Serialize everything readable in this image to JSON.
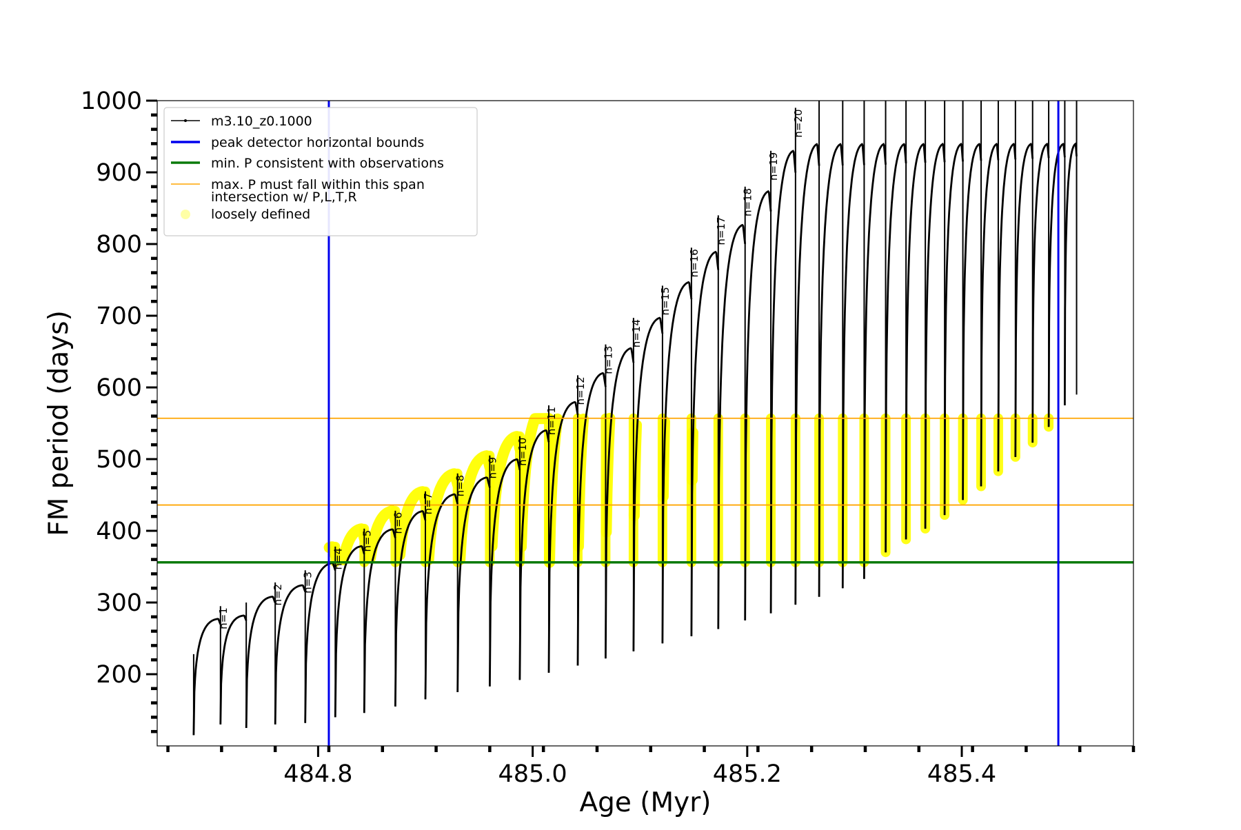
{
  "chart_data": {
    "type": "line",
    "title": "",
    "xlabel": "Age (Myr)",
    "ylabel": "FM period (days)",
    "xlim": [
      484.65,
      485.56
    ],
    "ylim": [
      100,
      1000
    ],
    "x_ticks": [
      484.8,
      485.0,
      485.2,
      485.4
    ],
    "x_tick_labels": [
      "484.8",
      "485.0",
      "485.2",
      "485.4"
    ],
    "y_ticks": [
      200,
      300,
      400,
      500,
      600,
      700,
      800,
      900,
      1000
    ],
    "y_tick_labels": [
      "200",
      "300",
      "400",
      "500",
      "600",
      "700",
      "800",
      "900",
      "1000"
    ],
    "grid": false,
    "legend_position": "top-left",
    "legend": [
      {
        "label": "m3.10_z0.1000",
        "style": "black-line-dots",
        "color": "#000000"
      },
      {
        "label": "peak detector horizontal bounds",
        "style": "line",
        "color": "#0000ee"
      },
      {
        "label": "min. P consistent with observations",
        "style": "line",
        "color": "#0a7a0a"
      },
      {
        "label": "max. P must fall within this span",
        "style": "thin-line",
        "color": "#ffa500"
      },
      {
        "label_lines": [
          "intersection w/ P,L,T,R",
          "loosely defined"
        ],
        "style": "circle",
        "color": "#ffff00"
      }
    ],
    "hlines": [
      {
        "name": "min-p-line",
        "y": 356,
        "color": "#0a7a0a"
      },
      {
        "name": "max-p-lower-line",
        "y": 436,
        "color": "#ffa500"
      },
      {
        "name": "max-p-upper-line",
        "y": 557,
        "color": "#ffa500"
      }
    ],
    "vlines": [
      {
        "name": "bound-left-line",
        "x": 484.81,
        "color": "#0000ee"
      },
      {
        "name": "bound-right-line",
        "x": 485.49,
        "color": "#0000ee"
      }
    ],
    "band": {
      "ymin": 356,
      "ymax": 557,
      "xmin": 484.81,
      "xmax": 485.49
    },
    "series_start": {
      "x": 484.684,
      "min": 115,
      "max": 228
    },
    "pulses": [
      {
        "x": 484.709,
        "min": 130,
        "max": 295,
        "label": "n=1"
      },
      {
        "x": 484.733,
        "min": 125,
        "max": 300,
        "label": ""
      },
      {
        "x": 484.76,
        "min": 130,
        "max": 328,
        "label": "n=2"
      },
      {
        "x": 484.788,
        "min": 132,
        "max": 345,
        "label": "n=3"
      },
      {
        "x": 484.816,
        "min": 140,
        "max": 378,
        "label": "n=4"
      },
      {
        "x": 484.843,
        "min": 146,
        "max": 403,
        "label": "n=5"
      },
      {
        "x": 484.872,
        "min": 155,
        "max": 428,
        "label": "n=6"
      },
      {
        "x": 484.9,
        "min": 165,
        "max": 455,
        "label": "n=7"
      },
      {
        "x": 484.93,
        "min": 175,
        "max": 480,
        "label": "n=8"
      },
      {
        "x": 484.96,
        "min": 183,
        "max": 505,
        "label": "n=9"
      },
      {
        "x": 484.988,
        "min": 192,
        "max": 532,
        "label": "n=10"
      },
      {
        "x": 485.015,
        "min": 202,
        "max": 575,
        "label": "n=11"
      },
      {
        "x": 485.042,
        "min": 212,
        "max": 617,
        "label": "n=12"
      },
      {
        "x": 485.068,
        "min": 222,
        "max": 660,
        "label": "n=13"
      },
      {
        "x": 485.094,
        "min": 232,
        "max": 697,
        "label": "n=14"
      },
      {
        "x": 485.121,
        "min": 243,
        "max": 742,
        "label": "n=15"
      },
      {
        "x": 485.148,
        "min": 253,
        "max": 795,
        "label": "n=16"
      },
      {
        "x": 485.173,
        "min": 263,
        "max": 840,
        "label": "n=17"
      },
      {
        "x": 485.198,
        "min": 275,
        "max": 880,
        "label": "n=18"
      },
      {
        "x": 485.222,
        "min": 285,
        "max": 930,
        "label": "n=19"
      },
      {
        "x": 485.245,
        "min": 297,
        "max": 990,
        "label": "n=20"
      },
      {
        "x": 485.267,
        "min": 308,
        "max": 1000,
        "label": ""
      },
      {
        "x": 485.289,
        "min": 320,
        "max": 1000,
        "label": ""
      },
      {
        "x": 485.309,
        "min": 333,
        "max": 1000,
        "label": ""
      },
      {
        "x": 485.329,
        "min": 370,
        "max": 1000,
        "label": ""
      },
      {
        "x": 485.348,
        "min": 388,
        "max": 1000,
        "label": ""
      },
      {
        "x": 485.366,
        "min": 403,
        "max": 1000,
        "label": ""
      },
      {
        "x": 485.384,
        "min": 422,
        "max": 1000,
        "label": ""
      },
      {
        "x": 485.401,
        "min": 443,
        "max": 1000,
        "label": ""
      },
      {
        "x": 485.418,
        "min": 462,
        "max": 1000,
        "label": ""
      },
      {
        "x": 485.434,
        "min": 483,
        "max": 1000,
        "label": ""
      },
      {
        "x": 485.45,
        "min": 503,
        "max": 1000,
        "label": ""
      },
      {
        "x": 485.466,
        "min": 523,
        "max": 1000,
        "label": ""
      },
      {
        "x": 485.481,
        "min": 545,
        "max": 1000,
        "label": ""
      },
      {
        "x": 485.496,
        "min": 575,
        "max": 1000,
        "label": ""
      },
      {
        "x": 485.507,
        "min": 590,
        "max": 1000,
        "label": ""
      }
    ]
  }
}
